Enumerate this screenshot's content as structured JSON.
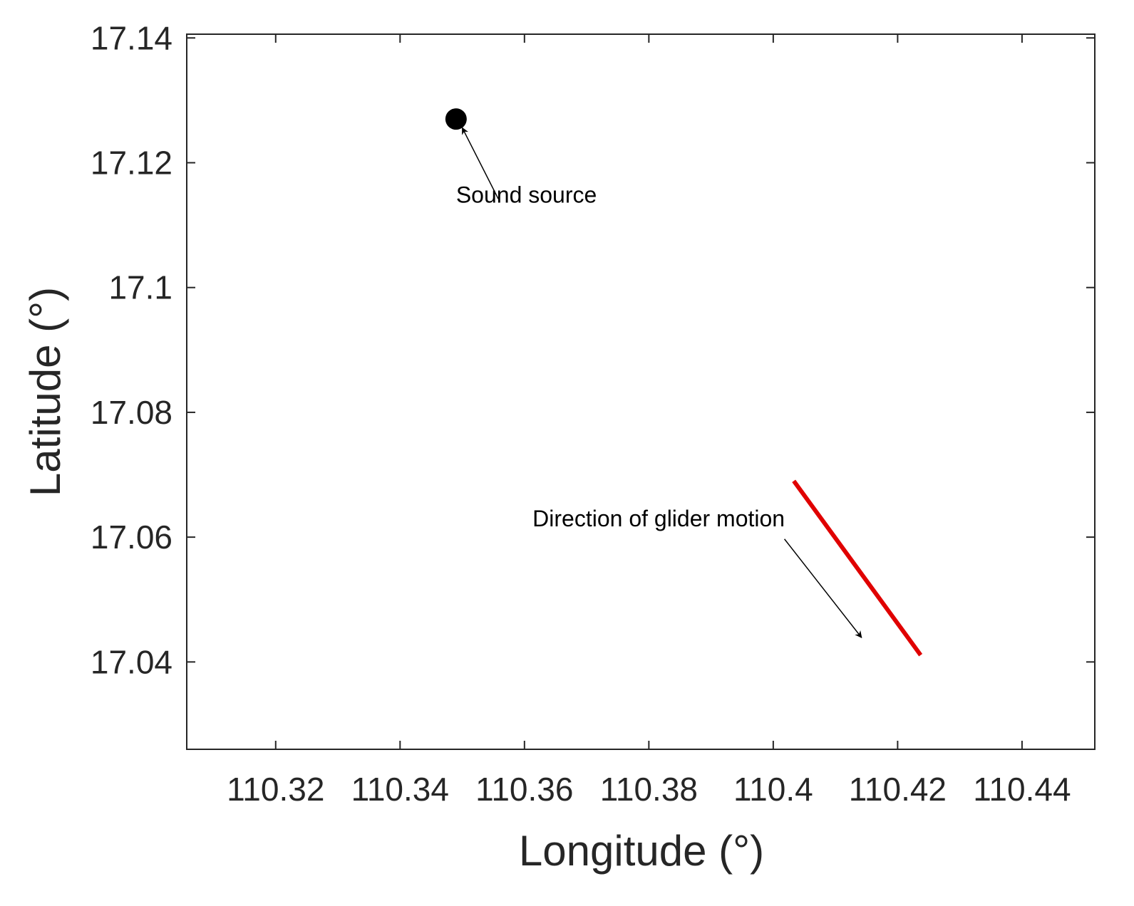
{
  "chart_data": {
    "type": "scatter",
    "xlabel": "Longitude (°)",
    "ylabel": "Latitude (°)",
    "xlim": [
      110.3057,
      110.4517
    ],
    "ylim": [
      17.026,
      17.1406
    ],
    "xticks": [
      110.32,
      110.34,
      110.36,
      110.38,
      110.4,
      110.42,
      110.44
    ],
    "xtick_labels": [
      "110.32",
      "110.34",
      "110.36",
      "110.38",
      "110.4",
      "110.42",
      "110.44"
    ],
    "yticks": [
      17.04,
      17.06,
      17.08,
      17.1,
      17.12,
      17.14
    ],
    "ytick_labels": [
      "17.04",
      "17.06",
      "17.08",
      "17.1",
      "17.12",
      "17.14"
    ],
    "grid": false,
    "series": [
      {
        "kind": "point",
        "color": "#000000",
        "points": [
          [
            110.349,
            17.127
          ]
        ]
      },
      {
        "kind": "line",
        "color": "#e00000",
        "points": [
          [
            110.4033,
            17.069
          ],
          [
            110.4237,
            17.0411
          ]
        ]
      }
    ],
    "annotations": [
      {
        "text": "Sound source",
        "text_pos": [
          110.349,
          17.1136
        ],
        "arrow_from": [
          110.3558,
          17.1142
        ],
        "arrow_to": [
          110.35,
          17.1256
        ]
      },
      {
        "text": "Direction of glider motion",
        "text_pos": [
          110.3613,
          17.0617
        ],
        "arrow_from": [
          110.4018,
          17.0597
        ],
        "arrow_to": [
          110.4142,
          17.0439
        ]
      }
    ]
  }
}
